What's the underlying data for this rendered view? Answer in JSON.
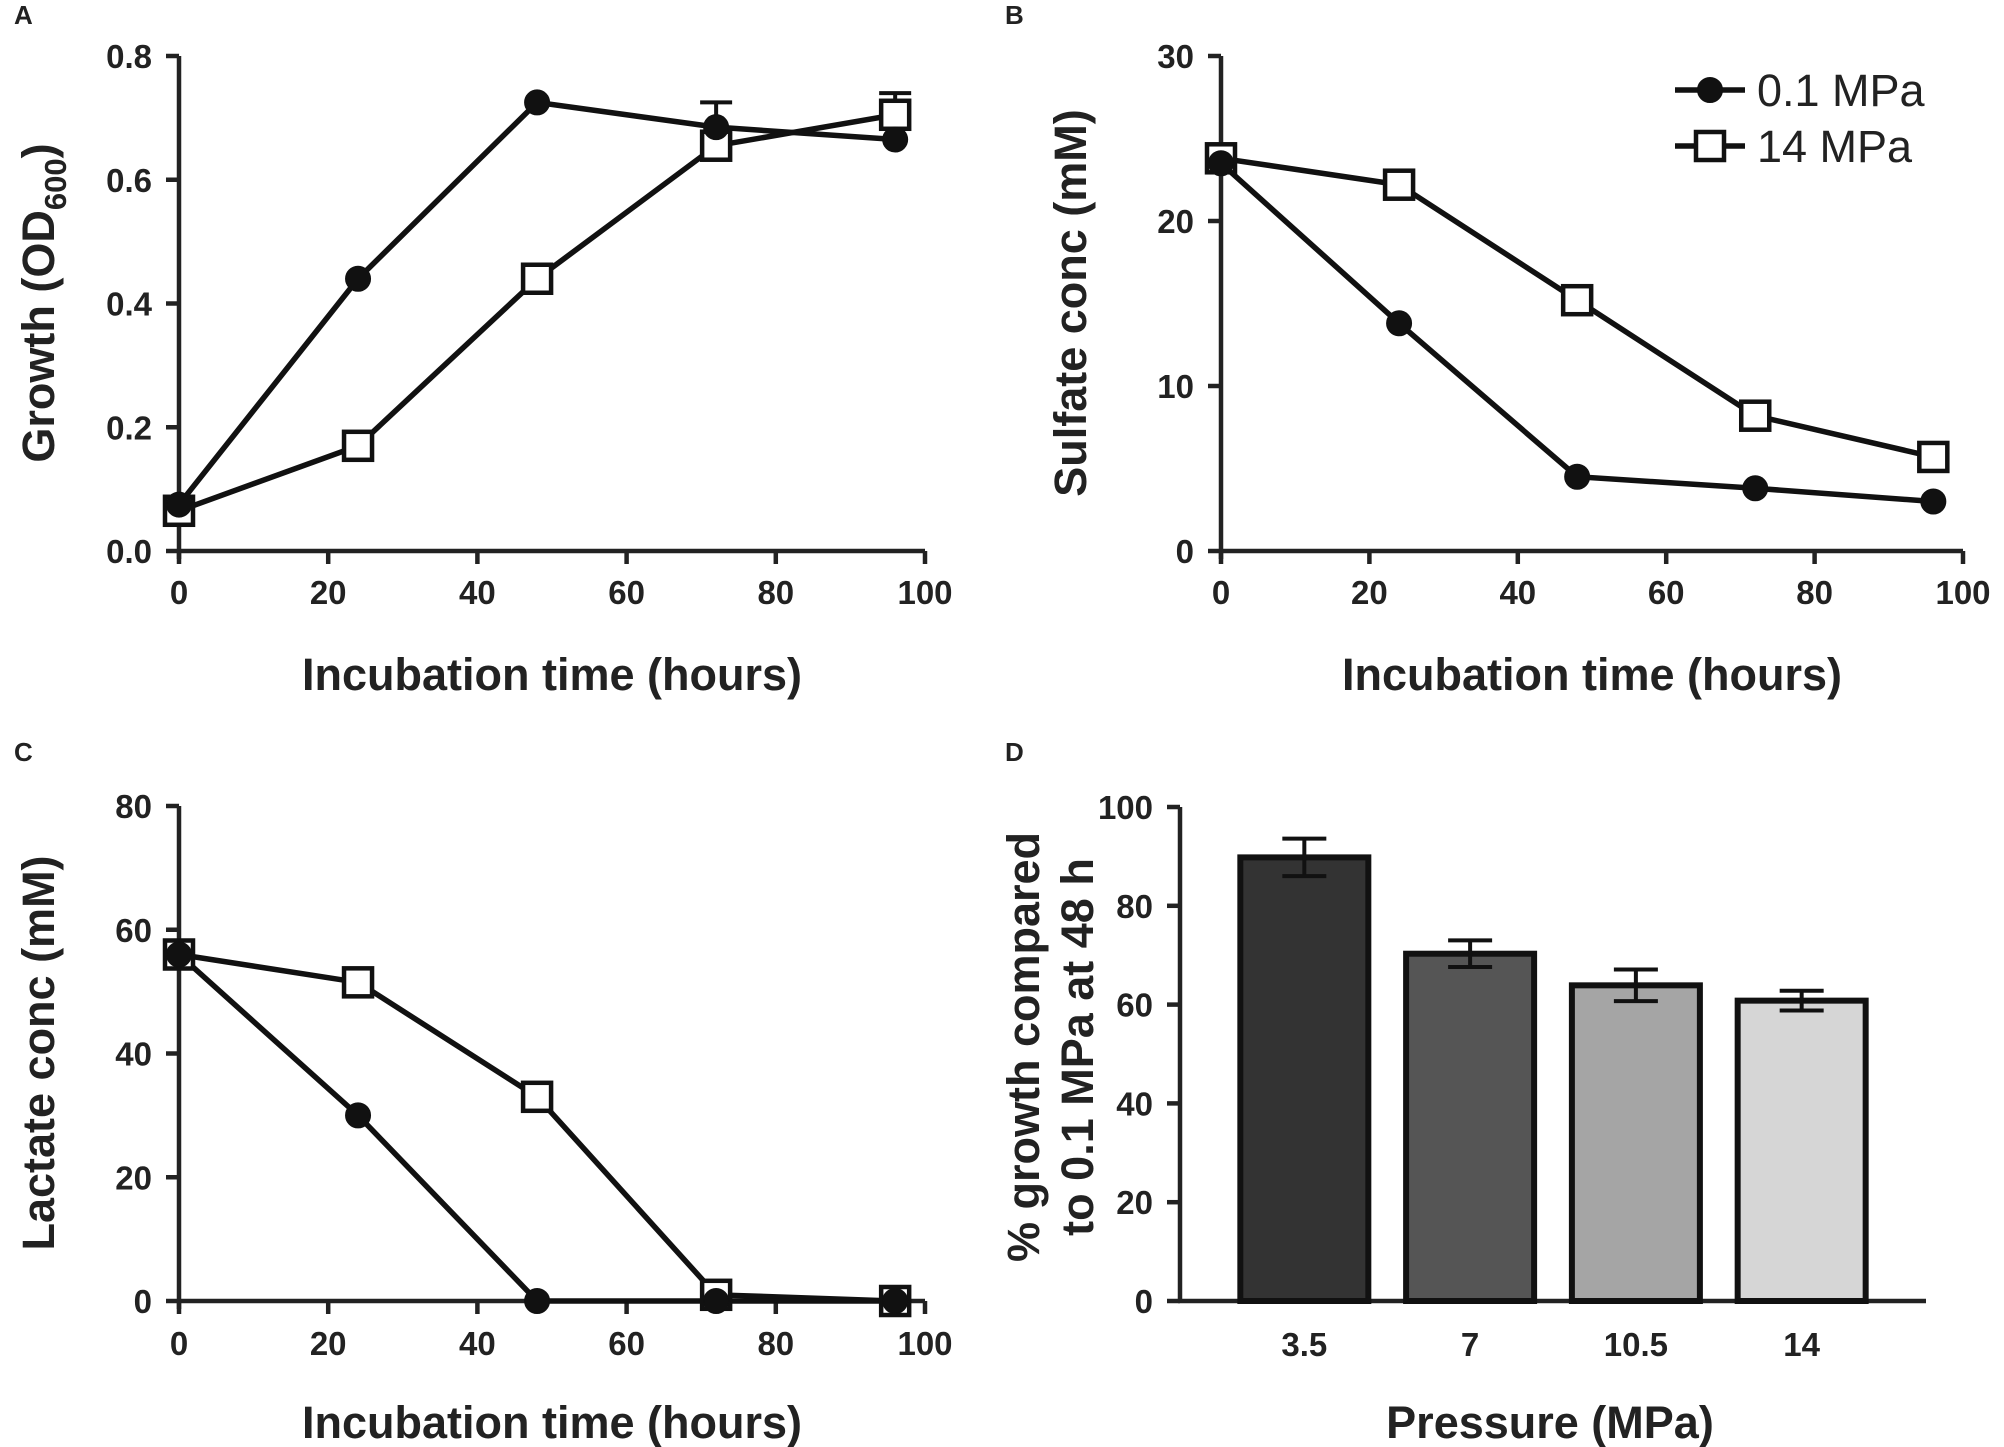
{
  "chart_data": [
    {
      "panel": "A",
      "type": "line",
      "xlabel": "Incubation time (hours)",
      "ylabel_main": "Growth (OD",
      "ylabel_sub": "600",
      "ylabel_close": ")",
      "xlim": [
        0,
        100
      ],
      "ylim": [
        0.0,
        0.8
      ],
      "xticks": [
        0,
        20,
        40,
        60,
        80,
        100
      ],
      "xtick_labels": [
        "0",
        "20",
        "40",
        "60",
        "80",
        "100"
      ],
      "yticks": [
        0.0,
        0.2,
        0.4,
        0.6,
        0.8
      ],
      "ytick_labels": [
        "0.0",
        "0.2",
        "0.4",
        "0.6",
        "0.8"
      ],
      "series": [
        {
          "name": "0.1 MPa",
          "marker": "filled-circle",
          "x": [
            0,
            24,
            48,
            72,
            96
          ],
          "y": [
            0.075,
            0.44,
            0.725,
            0.685,
            0.665
          ],
          "err": [
            0,
            0,
            0,
            0.04,
            0
          ]
        },
        {
          "name": "14 MPa",
          "marker": "open-square",
          "x": [
            0,
            24,
            48,
            72,
            96
          ],
          "y": [
            0.065,
            0.17,
            0.44,
            0.655,
            0.705
          ],
          "err": [
            0,
            0,
            0,
            0,
            0.035
          ]
        }
      ]
    },
    {
      "panel": "B",
      "type": "line",
      "xlabel": "Incubation time (hours)",
      "ylabel": "Sulfate conc (mM)",
      "xlim": [
        0,
        100
      ],
      "ylim": [
        0,
        30
      ],
      "xticks": [
        0,
        20,
        40,
        60,
        80,
        100
      ],
      "xtick_labels": [
        "0",
        "20",
        "40",
        "60",
        "80",
        "100"
      ],
      "yticks": [
        0,
        10,
        20,
        30
      ],
      "ytick_labels": [
        "0",
        "10",
        "20",
        "30"
      ],
      "legend": {
        "position": "top-right",
        "entries": [
          "0.1 MPa",
          "14 MPa"
        ]
      },
      "series": [
        {
          "name": "0.1 MPa",
          "marker": "filled-circle",
          "x": [
            0,
            24,
            48,
            72,
            96
          ],
          "y": [
            23.5,
            13.8,
            4.5,
            3.8,
            3.0
          ],
          "err": [
            0,
            0,
            0,
            0,
            0
          ]
        },
        {
          "name": "14 MPa",
          "marker": "open-square",
          "x": [
            0,
            24,
            48,
            72,
            96
          ],
          "y": [
            23.8,
            22.2,
            15.2,
            8.2,
            5.7
          ],
          "err": [
            0,
            0,
            0,
            0,
            0
          ]
        }
      ]
    },
    {
      "panel": "C",
      "type": "line",
      "xlabel": "Incubation time (hours)",
      "ylabel": "Lactate conc (mM)",
      "xlim": [
        0,
        100
      ],
      "ylim": [
        0,
        80
      ],
      "xticks": [
        0,
        20,
        40,
        60,
        80,
        100
      ],
      "xtick_labels": [
        "0",
        "20",
        "40",
        "60",
        "80",
        "100"
      ],
      "yticks": [
        0,
        20,
        40,
        60,
        80
      ],
      "ytick_labels": [
        "0",
        "20",
        "40",
        "60",
        "80"
      ],
      "series": [
        {
          "name": "0.1 MPa",
          "marker": "filled-circle",
          "x": [
            0,
            24,
            48,
            72,
            96
          ],
          "y": [
            56,
            30,
            0,
            0,
            0
          ],
          "err": [
            0,
            0,
            0,
            0,
            0
          ]
        },
        {
          "name": "14 MPa",
          "marker": "open-square",
          "x": [
            0,
            24,
            48,
            72,
            96
          ],
          "y": [
            56,
            51.5,
            33,
            1,
            0
          ],
          "err": [
            0,
            0,
            0,
            0,
            0
          ]
        }
      ]
    },
    {
      "panel": "D",
      "type": "bar",
      "xlabel": "Pressure (MPa)",
      "ylabel_lines": [
        "% growth compared",
        "to 0.1 MPa at 48 h"
      ],
      "ylim": [
        0,
        100
      ],
      "yticks": [
        0,
        20,
        40,
        60,
        80,
        100
      ],
      "ytick_labels": [
        "0",
        "20",
        "40",
        "60",
        "80",
        "100"
      ],
      "categories": [
        "3.5",
        "7",
        "10.5",
        "14"
      ],
      "values": [
        89.8,
        70.3,
        63.9,
        60.8
      ],
      "errors": [
        3.8,
        2.7,
        3.2,
        2.0
      ],
      "bar_colors": [
        "#333333",
        "#555555",
        "#a5a5a5",
        "#d6d6d6"
      ]
    }
  ]
}
